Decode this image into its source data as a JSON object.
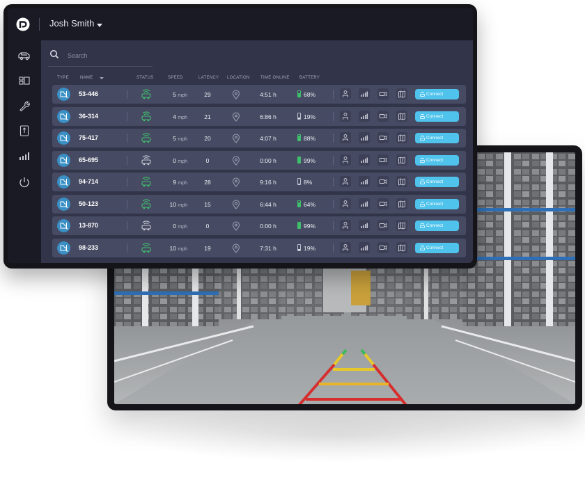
{
  "header": {
    "user_name": "Josh Smith"
  },
  "sidebar": {
    "items": [
      {
        "icon": "vehicle-icon"
      },
      {
        "icon": "devices-icon"
      },
      {
        "icon": "wrench-icon"
      },
      {
        "icon": "document-icon"
      },
      {
        "icon": "analytics-icon"
      },
      {
        "icon": "power-icon"
      }
    ]
  },
  "search": {
    "placeholder": "Search"
  },
  "table": {
    "headers": {
      "type": "TYPE",
      "name": "NAME",
      "status": "STATUS",
      "speed": "SPEED",
      "latency": "LATENCY",
      "location": "LOCATION",
      "time_online": "TIME ONLINE",
      "battery": "BATTERY"
    },
    "speed_unit": "mph",
    "connect_label": "Connect",
    "rows": [
      {
        "name": "53-446",
        "status": "active",
        "speed": "5",
        "latency": "29",
        "time_online": "4:51 h",
        "battery": "68%",
        "battery_level": 0.68
      },
      {
        "name": "36-314",
        "status": "active",
        "speed": "4",
        "latency": "21",
        "time_online": "6:86 h",
        "battery": "19%",
        "battery_level": 0.19
      },
      {
        "name": "75-417",
        "status": "active",
        "speed": "5",
        "latency": "20",
        "time_online": "4:07 h",
        "battery": "88%",
        "battery_level": 0.88
      },
      {
        "name": "65-695",
        "status": "idle",
        "speed": "0",
        "latency": "0",
        "time_online": "0:00 h",
        "battery": "99%",
        "battery_level": 0.99
      },
      {
        "name": "94-714",
        "status": "active",
        "speed": "9",
        "latency": "28",
        "time_online": "9:16 h",
        "battery": "8%",
        "battery_level": 0.08
      },
      {
        "name": "50-123",
        "status": "active",
        "speed": "10",
        "latency": "15",
        "time_online": "6:44 h",
        "battery": "64%",
        "battery_level": 0.64
      },
      {
        "name": "13-870",
        "status": "idle",
        "speed": "0",
        "latency": "0",
        "time_online": "0:00 h",
        "battery": "99%",
        "battery_level": 0.99
      },
      {
        "name": "98-233",
        "status": "active",
        "speed": "10",
        "latency": "19",
        "time_online": "7:31 h",
        "battery": "19%",
        "battery_level": 0.19
      }
    ]
  },
  "colors": {
    "accent": "#4fc3ec",
    "status_active": "#3fbf6c",
    "status_idle": "#c9cbd6",
    "battery_high": "#3fbf6c",
    "battery_low": "#d9dbe4"
  }
}
